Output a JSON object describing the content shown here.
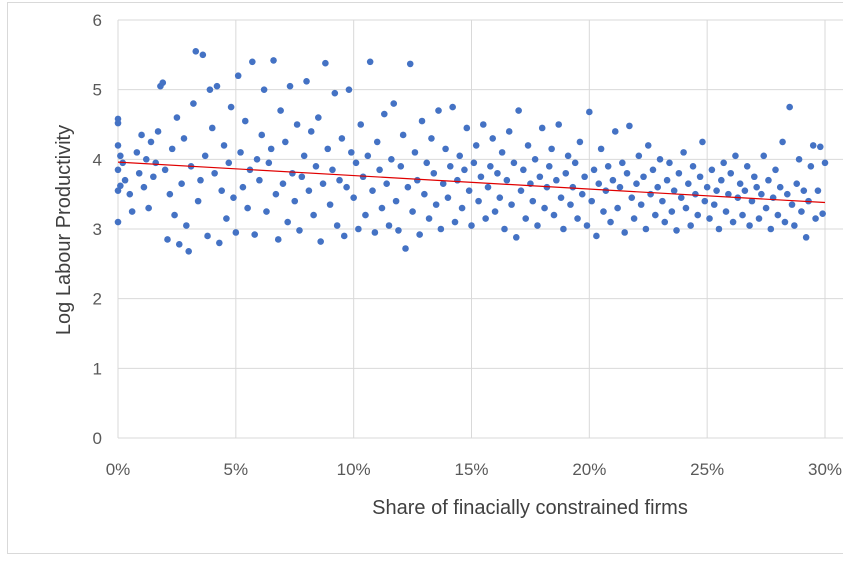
{
  "chart_data": {
    "type": "scatter",
    "title": "",
    "xlabel": "Share of finacially constrained firms",
    "ylabel": "Log Labour Productivity",
    "xlim": [
      0,
      0.3
    ],
    "ylim": [
      0,
      6
    ],
    "x_ticks": [
      0,
      0.05,
      0.1,
      0.15,
      0.2,
      0.25,
      0.3
    ],
    "x_tick_labels": [
      "0%",
      "5%",
      "10%",
      "15%",
      "20%",
      "25%",
      "30%"
    ],
    "y_ticks": [
      0,
      1,
      2,
      3,
      4,
      5,
      6
    ],
    "y_tick_labels": [
      "0",
      "1",
      "2",
      "3",
      "4",
      "5",
      "6"
    ],
    "grid": true,
    "point_color": "#4472c4",
    "trendline_color": "#e00000",
    "trendline": {
      "x": [
        0,
        0.3
      ],
      "y": [
        3.96,
        3.38
      ]
    },
    "series": [
      {
        "values": [
          [
            0.0,
            3.1
          ],
          [
            0.0,
            3.55
          ],
          [
            0.0,
            3.85
          ],
          [
            0.0,
            4.2
          ],
          [
            0.0,
            4.52
          ],
          [
            0.0,
            4.58
          ],
          [
            0.001,
            3.62
          ],
          [
            0.001,
            4.05
          ],
          [
            0.002,
            3.95
          ],
          [
            0.003,
            3.7
          ],
          [
            0.005,
            3.5
          ],
          [
            0.006,
            3.25
          ],
          [
            0.008,
            4.1
          ],
          [
            0.009,
            3.8
          ],
          [
            0.01,
            4.35
          ],
          [
            0.011,
            3.6
          ],
          [
            0.012,
            4.0
          ],
          [
            0.013,
            3.3
          ],
          [
            0.014,
            4.25
          ],
          [
            0.015,
            3.75
          ],
          [
            0.016,
            3.95
          ],
          [
            0.017,
            4.4
          ],
          [
            0.018,
            5.05
          ],
          [
            0.019,
            5.1
          ],
          [
            0.02,
            3.85
          ],
          [
            0.021,
            2.85
          ],
          [
            0.022,
            3.5
          ],
          [
            0.023,
            4.15
          ],
          [
            0.024,
            3.2
          ],
          [
            0.025,
            4.6
          ],
          [
            0.026,
            2.78
          ],
          [
            0.027,
            3.65
          ],
          [
            0.028,
            4.3
          ],
          [
            0.029,
            3.05
          ],
          [
            0.03,
            2.68
          ],
          [
            0.031,
            3.9
          ],
          [
            0.032,
            4.8
          ],
          [
            0.033,
            5.55
          ],
          [
            0.034,
            3.4
          ],
          [
            0.035,
            3.7
          ],
          [
            0.036,
            5.5
          ],
          [
            0.037,
            4.05
          ],
          [
            0.038,
            2.9
          ],
          [
            0.039,
            5.0
          ],
          [
            0.04,
            4.45
          ],
          [
            0.041,
            3.8
          ],
          [
            0.042,
            5.05
          ],
          [
            0.043,
            2.8
          ],
          [
            0.044,
            3.55
          ],
          [
            0.045,
            4.2
          ],
          [
            0.046,
            3.15
          ],
          [
            0.047,
            3.95
          ],
          [
            0.048,
            4.75
          ],
          [
            0.049,
            3.45
          ],
          [
            0.05,
            2.95
          ],
          [
            0.051,
            5.2
          ],
          [
            0.052,
            4.1
          ],
          [
            0.053,
            3.6
          ],
          [
            0.054,
            4.55
          ],
          [
            0.055,
            3.3
          ],
          [
            0.056,
            3.85
          ],
          [
            0.057,
            5.4
          ],
          [
            0.058,
            2.92
          ],
          [
            0.059,
            4.0
          ],
          [
            0.06,
            3.7
          ],
          [
            0.061,
            4.35
          ],
          [
            0.062,
            5.0
          ],
          [
            0.063,
            3.25
          ],
          [
            0.064,
            3.95
          ],
          [
            0.065,
            4.15
          ],
          [
            0.066,
            5.42
          ],
          [
            0.067,
            3.5
          ],
          [
            0.068,
            2.85
          ],
          [
            0.069,
            4.7
          ],
          [
            0.07,
            3.65
          ],
          [
            0.071,
            4.25
          ],
          [
            0.072,
            3.1
          ],
          [
            0.073,
            5.05
          ],
          [
            0.074,
            3.8
          ],
          [
            0.075,
            3.4
          ],
          [
            0.076,
            4.5
          ],
          [
            0.077,
            2.98
          ],
          [
            0.078,
            3.75
          ],
          [
            0.079,
            4.05
          ],
          [
            0.08,
            5.12
          ],
          [
            0.081,
            3.55
          ],
          [
            0.082,
            4.4
          ],
          [
            0.083,
            3.2
          ],
          [
            0.084,
            3.9
          ],
          [
            0.085,
            4.6
          ],
          [
            0.086,
            2.82
          ],
          [
            0.087,
            3.65
          ],
          [
            0.088,
            5.38
          ],
          [
            0.089,
            4.15
          ],
          [
            0.09,
            3.35
          ],
          [
            0.091,
            3.85
          ],
          [
            0.092,
            4.95
          ],
          [
            0.093,
            3.05
          ],
          [
            0.094,
            3.7
          ],
          [
            0.095,
            4.3
          ],
          [
            0.096,
            2.9
          ],
          [
            0.097,
            3.6
          ],
          [
            0.098,
            5.0
          ],
          [
            0.099,
            4.1
          ],
          [
            0.1,
            3.45
          ],
          [
            0.101,
            3.95
          ],
          [
            0.102,
            3.0
          ],
          [
            0.103,
            4.5
          ],
          [
            0.104,
            3.75
          ],
          [
            0.105,
            3.2
          ],
          [
            0.106,
            4.05
          ],
          [
            0.107,
            5.4
          ],
          [
            0.108,
            3.55
          ],
          [
            0.109,
            2.95
          ],
          [
            0.11,
            4.25
          ],
          [
            0.111,
            3.85
          ],
          [
            0.112,
            3.3
          ],
          [
            0.113,
            4.65
          ],
          [
            0.114,
            3.65
          ],
          [
            0.115,
            3.05
          ],
          [
            0.116,
            4.0
          ],
          [
            0.117,
            4.8
          ],
          [
            0.118,
            3.4
          ],
          [
            0.119,
            2.98
          ],
          [
            0.12,
            3.9
          ],
          [
            0.121,
            4.35
          ],
          [
            0.122,
            2.72
          ],
          [
            0.123,
            3.6
          ],
          [
            0.124,
            5.37
          ],
          [
            0.125,
            3.25
          ],
          [
            0.126,
            4.1
          ],
          [
            0.127,
            3.7
          ],
          [
            0.128,
            2.92
          ],
          [
            0.129,
            4.55
          ],
          [
            0.13,
            3.5
          ],
          [
            0.131,
            3.95
          ],
          [
            0.132,
            3.15
          ],
          [
            0.133,
            4.3
          ],
          [
            0.134,
            3.8
          ],
          [
            0.135,
            3.35
          ],
          [
            0.136,
            4.7
          ],
          [
            0.137,
            3.0
          ],
          [
            0.138,
            3.65
          ],
          [
            0.139,
            4.15
          ],
          [
            0.14,
            3.45
          ],
          [
            0.141,
            3.9
          ],
          [
            0.142,
            4.75
          ],
          [
            0.143,
            3.1
          ],
          [
            0.144,
            3.7
          ],
          [
            0.145,
            4.05
          ],
          [
            0.146,
            3.3
          ],
          [
            0.147,
            3.85
          ],
          [
            0.148,
            4.45
          ],
          [
            0.149,
            3.55
          ],
          [
            0.15,
            3.05
          ],
          [
            0.151,
            3.95
          ],
          [
            0.152,
            4.2
          ],
          [
            0.153,
            3.4
          ],
          [
            0.154,
            3.75
          ],
          [
            0.155,
            4.5
          ],
          [
            0.156,
            3.15
          ],
          [
            0.157,
            3.6
          ],
          [
            0.158,
            3.9
          ],
          [
            0.159,
            4.3
          ],
          [
            0.16,
            3.25
          ],
          [
            0.161,
            3.8
          ],
          [
            0.162,
            3.45
          ],
          [
            0.163,
            4.1
          ],
          [
            0.164,
            3.0
          ],
          [
            0.165,
            3.7
          ],
          [
            0.166,
            4.4
          ],
          [
            0.167,
            3.35
          ],
          [
            0.168,
            3.95
          ],
          [
            0.169,
            2.88
          ],
          [
            0.17,
            4.7
          ],
          [
            0.171,
            3.55
          ],
          [
            0.172,
            3.85
          ],
          [
            0.173,
            3.15
          ],
          [
            0.174,
            4.2
          ],
          [
            0.175,
            3.65
          ],
          [
            0.176,
            3.4
          ],
          [
            0.177,
            4.0
          ],
          [
            0.178,
            3.05
          ],
          [
            0.179,
            3.75
          ],
          [
            0.18,
            4.45
          ],
          [
            0.181,
            3.3
          ],
          [
            0.182,
            3.6
          ],
          [
            0.183,
            3.9
          ],
          [
            0.184,
            4.15
          ],
          [
            0.185,
            3.2
          ],
          [
            0.186,
            3.7
          ],
          [
            0.187,
            4.5
          ],
          [
            0.188,
            3.45
          ],
          [
            0.189,
            3.0
          ],
          [
            0.19,
            3.8
          ],
          [
            0.191,
            4.05
          ],
          [
            0.192,
            3.35
          ],
          [
            0.193,
            3.6
          ],
          [
            0.194,
            3.95
          ],
          [
            0.195,
            3.15
          ],
          [
            0.196,
            4.25
          ],
          [
            0.197,
            3.5
          ],
          [
            0.198,
            3.75
          ],
          [
            0.199,
            3.05
          ],
          [
            0.2,
            4.68
          ],
          [
            0.201,
            3.4
          ],
          [
            0.202,
            3.85
          ],
          [
            0.203,
            2.9
          ],
          [
            0.204,
            3.65
          ],
          [
            0.205,
            4.15
          ],
          [
            0.206,
            3.25
          ],
          [
            0.207,
            3.55
          ],
          [
            0.208,
            3.9
          ],
          [
            0.209,
            3.1
          ],
          [
            0.21,
            3.7
          ],
          [
            0.211,
            4.4
          ],
          [
            0.212,
            3.3
          ],
          [
            0.213,
            3.6
          ],
          [
            0.214,
            3.95
          ],
          [
            0.215,
            2.95
          ],
          [
            0.216,
            3.8
          ],
          [
            0.217,
            4.48
          ],
          [
            0.218,
            3.45
          ],
          [
            0.219,
            3.15
          ],
          [
            0.22,
            3.65
          ],
          [
            0.221,
            4.05
          ],
          [
            0.222,
            3.35
          ],
          [
            0.223,
            3.75
          ],
          [
            0.224,
            3.0
          ],
          [
            0.225,
            4.2
          ],
          [
            0.226,
            3.5
          ],
          [
            0.227,
            3.85
          ],
          [
            0.228,
            3.2
          ],
          [
            0.229,
            3.6
          ],
          [
            0.23,
            4.0
          ],
          [
            0.231,
            3.4
          ],
          [
            0.232,
            3.1
          ],
          [
            0.233,
            3.7
          ],
          [
            0.234,
            3.95
          ],
          [
            0.235,
            3.25
          ],
          [
            0.236,
            3.55
          ],
          [
            0.237,
            2.98
          ],
          [
            0.238,
            3.8
          ],
          [
            0.239,
            3.45
          ],
          [
            0.24,
            4.1
          ],
          [
            0.241,
            3.3
          ],
          [
            0.242,
            3.65
          ],
          [
            0.243,
            3.05
          ],
          [
            0.244,
            3.9
          ],
          [
            0.245,
            3.5
          ],
          [
            0.246,
            3.2
          ],
          [
            0.247,
            3.75
          ],
          [
            0.248,
            4.25
          ],
          [
            0.249,
            3.4
          ],
          [
            0.25,
            3.6
          ],
          [
            0.251,
            3.15
          ],
          [
            0.252,
            3.85
          ],
          [
            0.253,
            3.35
          ],
          [
            0.254,
            3.55
          ],
          [
            0.255,
            3.0
          ],
          [
            0.256,
            3.7
          ],
          [
            0.257,
            3.95
          ],
          [
            0.258,
            3.25
          ],
          [
            0.259,
            3.5
          ],
          [
            0.26,
            3.8
          ],
          [
            0.261,
            3.1
          ],
          [
            0.262,
            4.05
          ],
          [
            0.263,
            3.45
          ],
          [
            0.264,
            3.65
          ],
          [
            0.265,
            3.2
          ],
          [
            0.266,
            3.55
          ],
          [
            0.267,
            3.9
          ],
          [
            0.268,
            3.05
          ],
          [
            0.269,
            3.4
          ],
          [
            0.27,
            3.75
          ],
          [
            0.271,
            3.6
          ],
          [
            0.272,
            3.15
          ],
          [
            0.273,
            3.5
          ],
          [
            0.274,
            4.05
          ],
          [
            0.275,
            3.3
          ],
          [
            0.276,
            3.7
          ],
          [
            0.277,
            3.0
          ],
          [
            0.278,
            3.45
          ],
          [
            0.279,
            3.85
          ],
          [
            0.28,
            3.2
          ],
          [
            0.281,
            3.6
          ],
          [
            0.282,
            4.25
          ],
          [
            0.283,
            3.1
          ],
          [
            0.284,
            3.5
          ],
          [
            0.285,
            4.75
          ],
          [
            0.286,
            3.35
          ],
          [
            0.287,
            3.05
          ],
          [
            0.288,
            3.65
          ],
          [
            0.289,
            4.0
          ],
          [
            0.29,
            3.25
          ],
          [
            0.291,
            3.55
          ],
          [
            0.292,
            2.88
          ],
          [
            0.293,
            3.4
          ],
          [
            0.294,
            3.9
          ],
          [
            0.295,
            4.2
          ],
          [
            0.296,
            3.15
          ],
          [
            0.297,
            3.55
          ],
          [
            0.298,
            4.18
          ],
          [
            0.299,
            3.22
          ],
          [
            0.3,
            3.95
          ]
        ]
      }
    ]
  }
}
